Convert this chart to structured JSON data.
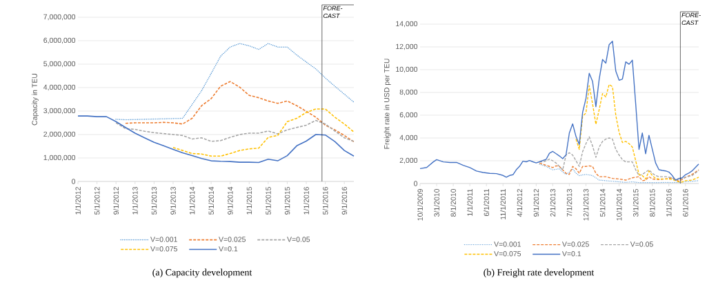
{
  "chart_data": [
    {
      "type": "line",
      "title": "(a) Capacity development",
      "ylabel": "Capacity in TEU",
      "grid": "y",
      "legend": "bottom",
      "xlim": [
        "2012-01",
        "2016-11"
      ],
      "ylim": [
        0,
        7000000
      ],
      "xticks": [
        {
          "value": "2012-01",
          "label": "1/1/2012"
        },
        {
          "value": "2012-05",
          "label": "5/1/2012"
        },
        {
          "value": "2012-09",
          "label": "9/1/2012"
        },
        {
          "value": "2013-01",
          "label": "1/1/2013"
        },
        {
          "value": "2013-05",
          "label": "5/1/2013"
        },
        {
          "value": "2013-09",
          "label": "9/1/2013"
        },
        {
          "value": "2014-01",
          "label": "1/1/2014"
        },
        {
          "value": "2014-05",
          "label": "5/1/2014"
        },
        {
          "value": "2014-09",
          "label": "9/1/2014"
        },
        {
          "value": "2015-01",
          "label": "1/1/2015"
        },
        {
          "value": "2015-05",
          "label": "5/1/2015"
        },
        {
          "value": "2015-09",
          "label": "9/1/2015"
        },
        {
          "value": "2016-01",
          "label": "1/1/2016"
        },
        {
          "value": "2016-05",
          "label": "5/1/2016"
        },
        {
          "value": "2016-09",
          "label": "9/1/2016"
        }
      ],
      "yticks": [
        0,
        {
          "value": 1000000,
          "label": "1,000,000"
        },
        {
          "value": 2000000,
          "label": "2,000,000"
        },
        {
          "value": 3000000,
          "label": "3,000,000"
        },
        {
          "value": 4000000,
          "label": "4,000,000"
        },
        {
          "value": 5000000,
          "label": "5,000,000"
        },
        {
          "value": 6000000,
          "label": "6,000,000"
        },
        {
          "value": 7000000,
          "label": "7,000,000"
        }
      ],
      "ref_lines": [
        {
          "axis": "x",
          "value": "2016-04-10",
          "label": "FORE-CAST"
        }
      ],
      "series": [
        {
          "name": "V=0.001",
          "color": "#5b9bd5",
          "line_style": "dotted",
          "x": [
            "2012-09",
            "2012-11",
            "2013-01",
            "2013-03",
            "2013-05",
            "2013-07",
            "2013-09",
            "2013-11",
            "2014-01",
            "2014-03",
            "2014-05",
            "2014-07",
            "2014-09",
            "2014-11",
            "2015-01",
            "2015-03",
            "2015-05",
            "2015-07",
            "2015-09",
            "2015-11",
            "2016-01",
            "2016-03",
            "2016-05",
            "2016-07",
            "2016-09",
            "2016-11"
          ],
          "values": [
            2650000,
            2630000,
            2640000,
            2650000,
            2660000,
            2670000,
            2680000,
            2690000,
            3280000,
            3870000,
            4600000,
            5340000,
            5730000,
            5880000,
            5780000,
            5630000,
            5880000,
            5730000,
            5730000,
            5390000,
            5090000,
            4800000,
            4410000,
            4060000,
            3720000,
            3380000
          ]
        },
        {
          "name": "V=0.025",
          "color": "#ed7d31",
          "line_style": "dashed",
          "x": [
            "2012-11",
            "2013-01",
            "2013-03",
            "2013-05",
            "2013-07",
            "2013-09",
            "2013-11",
            "2014-01",
            "2014-03",
            "2014-05",
            "2014-07",
            "2014-09",
            "2014-11",
            "2015-01",
            "2015-03",
            "2015-05",
            "2015-07",
            "2015-09",
            "2015-11",
            "2016-01",
            "2016-03",
            "2016-05",
            "2016-07",
            "2016-09",
            "2016-11"
          ],
          "values": [
            2480000,
            2500000,
            2500000,
            2500000,
            2520000,
            2500000,
            2450000,
            2690000,
            3230000,
            3530000,
            4060000,
            4260000,
            4020000,
            3670000,
            3570000,
            3430000,
            3330000,
            3430000,
            3230000,
            2990000,
            2740000,
            2400000,
            2200000,
            1960000,
            1690000
          ]
        },
        {
          "name": "V=0.05",
          "color": "#a5a5a5",
          "line_style": "dashed",
          "x": [
            "2012-09",
            "2012-11",
            "2013-01",
            "2013-03",
            "2013-05",
            "2013-07",
            "2013-09",
            "2013-11",
            "2014-01",
            "2014-03",
            "2014-05",
            "2014-07",
            "2014-09",
            "2014-11",
            "2015-01",
            "2015-03",
            "2015-05",
            "2015-07",
            "2015-09",
            "2015-11",
            "2016-01",
            "2016-03",
            "2016-05",
            "2016-07",
            "2016-09",
            "2016-11"
          ],
          "values": [
            2500000,
            2250000,
            2220000,
            2140000,
            2080000,
            2040000,
            2000000,
            1960000,
            1810000,
            1860000,
            1710000,
            1740000,
            1880000,
            2000000,
            2060000,
            2060000,
            2150000,
            2030000,
            2200000,
            2300000,
            2400000,
            2600000,
            2450000,
            2150000,
            1860000,
            1710000
          ]
        },
        {
          "name": "V=0.075",
          "color": "#ffc000",
          "line_style": "dashed",
          "x": [
            "2013-09",
            "2013-11",
            "2014-01",
            "2014-03",
            "2014-05",
            "2014-07",
            "2014-09",
            "2014-11",
            "2015-01",
            "2015-03",
            "2015-05",
            "2015-07",
            "2015-09",
            "2015-11",
            "2016-01",
            "2016-03",
            "2016-05",
            "2016-07",
            "2016-09",
            "2016-11"
          ],
          "values": [
            1450000,
            1320000,
            1190000,
            1170000,
            1080000,
            1080000,
            1190000,
            1320000,
            1390000,
            1420000,
            1880000,
            1960000,
            2550000,
            2690000,
            2940000,
            3090000,
            3090000,
            2740000,
            2450000,
            2110000
          ]
        },
        {
          "name": "V=0.1",
          "color": "#4472c4",
          "line_style": "solid",
          "x": [
            "2012-01",
            "2012-03",
            "2012-05",
            "2012-07",
            "2012-09",
            "2012-11",
            "2013-01",
            "2013-03",
            "2013-05",
            "2013-07",
            "2013-09",
            "2013-11",
            "2014-01",
            "2014-03",
            "2014-05",
            "2014-07",
            "2014-09",
            "2014-11",
            "2015-01",
            "2015-03",
            "2015-05",
            "2015-07",
            "2015-09",
            "2015-11",
            "2016-01",
            "2016-03",
            "2016-05",
            "2016-07",
            "2016-09",
            "2016-11"
          ],
          "values": [
            2790000,
            2790000,
            2760000,
            2760000,
            2550000,
            2300000,
            2060000,
            1860000,
            1670000,
            1520000,
            1370000,
            1220000,
            1100000,
            980000,
            880000,
            860000,
            850000,
            820000,
            820000,
            810000,
            950000,
            880000,
            1100000,
            1520000,
            1720000,
            2000000,
            1980000,
            1700000,
            1320000,
            1080000
          ]
        }
      ]
    },
    {
      "type": "line",
      "title": "(b) Freight rate development",
      "ylabel": "Freight rate in USD per TEU",
      "grid": "y",
      "legend": "bottom",
      "xlim": [
        "2009-10",
        "2016-10"
      ],
      "ylim": [
        0,
        14000
      ],
      "xticks": [
        {
          "value": "2009-10",
          "label": "10/1/2009"
        },
        {
          "value": "2010-03",
          "label": "3/1/2010"
        },
        {
          "value": "2010-08",
          "label": "8/1/2010"
        },
        {
          "value": "2011-01",
          "label": "1/1/2011"
        },
        {
          "value": "2011-06",
          "label": "6/1/2011"
        },
        {
          "value": "2011-11",
          "label": "11/1/2011"
        },
        {
          "value": "2012-04",
          "label": "4/1/2012"
        },
        {
          "value": "2012-09",
          "label": "9/1/2012"
        },
        {
          "value": "2013-02",
          "label": "2/1/2013"
        },
        {
          "value": "2013-07",
          "label": "7/1/2013"
        },
        {
          "value": "2013-12",
          "label": "12/1/2013"
        },
        {
          "value": "2014-05",
          "label": "5/1/2014"
        },
        {
          "value": "2014-10",
          "label": "10/1/2014"
        },
        {
          "value": "2015-03",
          "label": "3/1/2015"
        },
        {
          "value": "2015-08",
          "label": "8/1/2015"
        },
        {
          "value": "2016-01",
          "label": "1/1/2016"
        },
        {
          "value": "2016-06",
          "label": "6/1/2016"
        }
      ],
      "yticks": [
        0,
        {
          "value": 2000,
          "label": "2,000"
        },
        {
          "value": 4000,
          "label": "4,000"
        },
        {
          "value": 6000,
          "label": "6,000"
        },
        {
          "value": 8000,
          "label": "8,000"
        },
        {
          "value": 10000,
          "label": "10,000"
        },
        {
          "value": 12000,
          "label": "12,000"
        },
        {
          "value": 14000,
          "label": "14,000"
        }
      ],
      "ref_lines": [
        {
          "axis": "x",
          "value": "2016-04-15",
          "label": "FORE-CAST"
        }
      ],
      "series": [
        {
          "name": "V=0.001",
          "color": "#5b9bd5",
          "line_style": "dotted",
          "x": [
            "2012-10",
            "2012-12",
            "2013-02",
            "2013-04",
            "2013-05",
            "2013-06",
            "2013-07",
            "2013-08",
            "2013-09",
            "2013-10",
            "2013-12",
            "2014-02",
            "2014-04",
            "2014-06",
            "2014-08",
            "2014-10",
            "2014-12",
            "2015-02",
            "2015-04",
            "2015-06",
            "2015-08",
            "2015-10",
            "2015-12",
            "2016-02",
            "2016-04",
            "2016-06",
            "2016-08",
            "2016-10"
          ],
          "values": [
            1700,
            1500,
            1200,
            1300,
            1000,
            800,
            1000,
            1300,
            900,
            700,
            800,
            700,
            300,
            250,
            200,
            150,
            100,
            150,
            80,
            80,
            80,
            80,
            100,
            80,
            100,
            150,
            200,
            250
          ]
        },
        {
          "name": "V=0.025",
          "color": "#ed7d31",
          "line_style": "dashed",
          "x": [
            "2012-10",
            "2012-12",
            "2013-01",
            "2013-02",
            "2013-03",
            "2013-04",
            "2013-05",
            "2013-06",
            "2013-07",
            "2013-08",
            "2013-09",
            "2013-10",
            "2013-11",
            "2013-12",
            "2014-01",
            "2014-02",
            "2014-03",
            "2014-04",
            "2014-06",
            "2014-08",
            "2014-10",
            "2014-12",
            "2015-02",
            "2015-04",
            "2015-05",
            "2015-06",
            "2015-07",
            "2015-08",
            "2015-10",
            "2015-12",
            "2016-02",
            "2016-04",
            "2016-05",
            "2016-06",
            "2016-08",
            "2016-10"
          ],
          "values": [
            1800,
            1600,
            1500,
            1400,
            1550,
            1500,
            1200,
            900,
            800,
            1500,
            1300,
            900,
            1500,
            1500,
            1550,
            1500,
            900,
            600,
            600,
            450,
            400,
            300,
            500,
            600,
            250,
            300,
            600,
            400,
            350,
            400,
            500,
            200,
            350,
            550,
            800,
            1200
          ]
        },
        {
          "name": "V=0.05",
          "color": "#a5a5a5",
          "line_style": "dashed",
          "x": [
            "2012-10",
            "2012-11",
            "2012-12",
            "2013-01",
            "2013-02",
            "2013-03",
            "2013-04",
            "2013-05",
            "2013-06",
            "2013-07",
            "2013-08",
            "2013-09",
            "2013-10",
            "2013-11",
            "2013-12",
            "2014-01",
            "2014-02",
            "2014-03",
            "2014-04",
            "2014-05",
            "2014-06",
            "2014-07",
            "2014-08",
            "2014-09",
            "2014-10",
            "2014-11",
            "2014-12",
            "2015-02",
            "2015-03",
            "2015-04",
            "2015-05",
            "2015-06",
            "2015-07",
            "2015-08",
            "2015-09",
            "2015-10",
            "2015-12",
            "2016-02",
            "2016-03",
            "2016-04",
            "2016-06",
            "2016-08",
            "2016-10"
          ],
          "values": [
            1900,
            1900,
            2000,
            2150,
            2000,
            1800,
            1500,
            1200,
            2500,
            2700,
            2500,
            2000,
            1500,
            2800,
            3500,
            4100,
            3300,
            2300,
            3200,
            3700,
            3900,
            4000,
            3900,
            3000,
            2500,
            2100,
            1900,
            1900,
            1200,
            700,
            800,
            1000,
            1200,
            900,
            700,
            600,
            600,
            500,
            300,
            350,
            550,
            700,
            1150
          ]
        },
        {
          "name": "V=0.075",
          "color": "#ffc000",
          "line_style": "dashed",
          "x": [
            "2013-09",
            "2013-10",
            "2013-11",
            "2013-12",
            "2014-01",
            "2014-02",
            "2014-03",
            "2014-04",
            "2014-05",
            "2014-06",
            "2014-07",
            "2014-08",
            "2014-09",
            "2014-10",
            "2014-11",
            "2014-12",
            "2015-01",
            "2015-02",
            "2015-03",
            "2015-04",
            "2015-05",
            "2015-06",
            "2015-07",
            "2015-08",
            "2015-09",
            "2015-10",
            "2015-12",
            "2016-02",
            "2016-03",
            "2016-04",
            "2016-05",
            "2016-06",
            "2016-08",
            "2016-10"
          ],
          "values": [
            3900,
            3000,
            5900,
            6200,
            8600,
            7000,
            5200,
            6500,
            7900,
            7600,
            8700,
            8500,
            6000,
            4500,
            3600,
            3700,
            3500,
            3200,
            2000,
            800,
            700,
            400,
            1100,
            700,
            450,
            400,
            400,
            380,
            250,
            150,
            130,
            250,
            300,
            550
          ]
        },
        {
          "name": "V=0.1",
          "color": "#4472c4",
          "line_style": "solid",
          "x": [
            "2009-10",
            "2009-12",
            "2010-02",
            "2010-03",
            "2010-05",
            "2010-07",
            "2010-09",
            "2010-11",
            "2011-01",
            "2011-03",
            "2011-05",
            "2011-07",
            "2011-09",
            "2011-11",
            "2011-12",
            "2012-01",
            "2012-02",
            "2012-03",
            "2012-04",
            "2012-05",
            "2012-06",
            "2012-07",
            "2012-08",
            "2012-09",
            "2012-10",
            "2012-11",
            "2012-12",
            "2013-01",
            "2013-02",
            "2013-03",
            "2013-04",
            "2013-05",
            "2013-06",
            "2013-07",
            "2013-08",
            "2013-09",
            "2013-10",
            "2013-11",
            "2013-12",
            "2014-01",
            "2014-02",
            "2014-03",
            "2014-04",
            "2014-05",
            "2014-06",
            "2014-07",
            "2014-08",
            "2014-09",
            "2014-10",
            "2014-11",
            "2014-12",
            "2015-01",
            "2015-02",
            "2015-03",
            "2015-04",
            "2015-05",
            "2015-06",
            "2015-07",
            "2015-08",
            "2015-09",
            "2015-10",
            "2015-11",
            "2015-12",
            "2016-01",
            "2016-02",
            "2016-03",
            "2016-04",
            "2016-05",
            "2016-06",
            "2016-07",
            "2016-08",
            "2016-09",
            "2016-10"
          ],
          "values": [
            1310,
            1410,
            1900,
            2100,
            1900,
            1850,
            1850,
            1600,
            1400,
            1100,
            970,
            890,
            870,
            710,
            560,
            710,
            770,
            1210,
            1510,
            1960,
            1910,
            2020,
            1910,
            1810,
            1910,
            2020,
            2120,
            2660,
            2820,
            2620,
            2420,
            2180,
            2520,
            4440,
            5240,
            4130,
            3430,
            6250,
            7460,
            9680,
            8970,
            6750,
            9170,
            10890,
            10580,
            12200,
            12500,
            9880,
            9070,
            9170,
            10690,
            10480,
            10830,
            7000,
            3000,
            4440,
            2620,
            4230,
            3020,
            1810,
            1210,
            1150,
            1110,
            1010,
            710,
            300,
            440,
            500,
            770,
            910,
            1110,
            1410,
            1710
          ]
        }
      ]
    }
  ]
}
